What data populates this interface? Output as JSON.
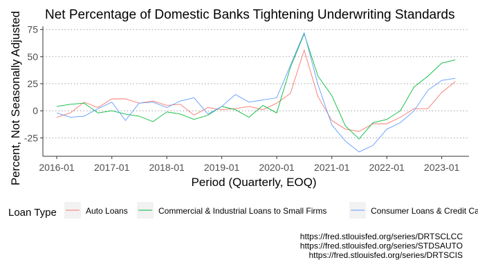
{
  "chart_data": {
    "type": "line",
    "title": "Net Percentage of Domestic Banks Tightening Underwriting Standards",
    "xlabel": "Period (Quarterly, EOQ)",
    "ylabel": "Percent, Not Seasonally Adjusted",
    "x_tick_labels": [
      "2016-01",
      "2017-01",
      "2018-01",
      "2019-01",
      "2020-01",
      "2021-01",
      "2022-01",
      "2023-01"
    ],
    "y_tick_labels": [
      "-25",
      "0",
      "25",
      "50",
      "75"
    ],
    "y_ticks": [
      -25,
      0,
      25,
      50,
      75
    ],
    "ylim": [
      -42,
      78
    ],
    "x_range": [
      "2015-10-01",
      "2023-07-01"
    ],
    "grid": "horizontal dotted",
    "legend_title": "Loan Type",
    "legend_position": "bottom",
    "x": [
      "2016-01-01",
      "2016-04-01",
      "2016-07-01",
      "2016-10-01",
      "2017-01-01",
      "2017-04-01",
      "2017-07-01",
      "2017-10-01",
      "2018-01-01",
      "2018-04-01",
      "2018-07-01",
      "2018-10-01",
      "2019-01-01",
      "2019-04-01",
      "2019-07-01",
      "2019-10-01",
      "2020-01-01",
      "2020-04-01",
      "2020-07-01",
      "2020-10-01",
      "2021-01-01",
      "2021-04-01",
      "2021-07-01",
      "2021-10-01",
      "2022-01-01",
      "2022-04-01",
      "2022-07-01",
      "2022-10-01",
      "2023-01-01",
      "2023-04-01"
    ],
    "series": [
      {
        "name": "Auto Loans",
        "color": "#F8766D",
        "values": [
          -6,
          -2,
          8,
          3,
          11,
          11,
          7,
          9,
          5,
          6,
          -4,
          3,
          1,
          2,
          4,
          1,
          7,
          16,
          56,
          13,
          -9,
          -17,
          -19,
          -12,
          -12,
          -6,
          2,
          2,
          17,
          27
        ]
      },
      {
        "name": "Commercial & Industrial Loans to Small Firms",
        "color": "#00BA38",
        "values": [
          4,
          6,
          7,
          -2,
          0,
          -3,
          -5,
          -10,
          -1,
          -3,
          -8,
          -4,
          4,
          1,
          -6,
          5,
          -2,
          40,
          71,
          32,
          14,
          -14,
          -26,
          -11,
          -8,
          0,
          22,
          32,
          44,
          47
        ]
      },
      {
        "name": "Consumer Loans & Credit Cards",
        "color": "#619CFF",
        "values": [
          -2,
          -6,
          -5,
          2,
          8,
          -9,
          7,
          8,
          3,
          9,
          12,
          -3,
          4,
          15,
          8,
          10,
          12,
          42,
          72,
          24,
          -13,
          -28,
          -38,
          -32,
          -17,
          -11,
          0,
          19,
          28,
          30
        ]
      }
    ]
  },
  "captions": [
    "https://fred.stlouisfed.org/series/DRTSCLCC",
    "https://fred.stlouisfed.org/series/STDSAUTO",
    "https://fred.stlouisfed.org/series/DRTSCIS"
  ]
}
